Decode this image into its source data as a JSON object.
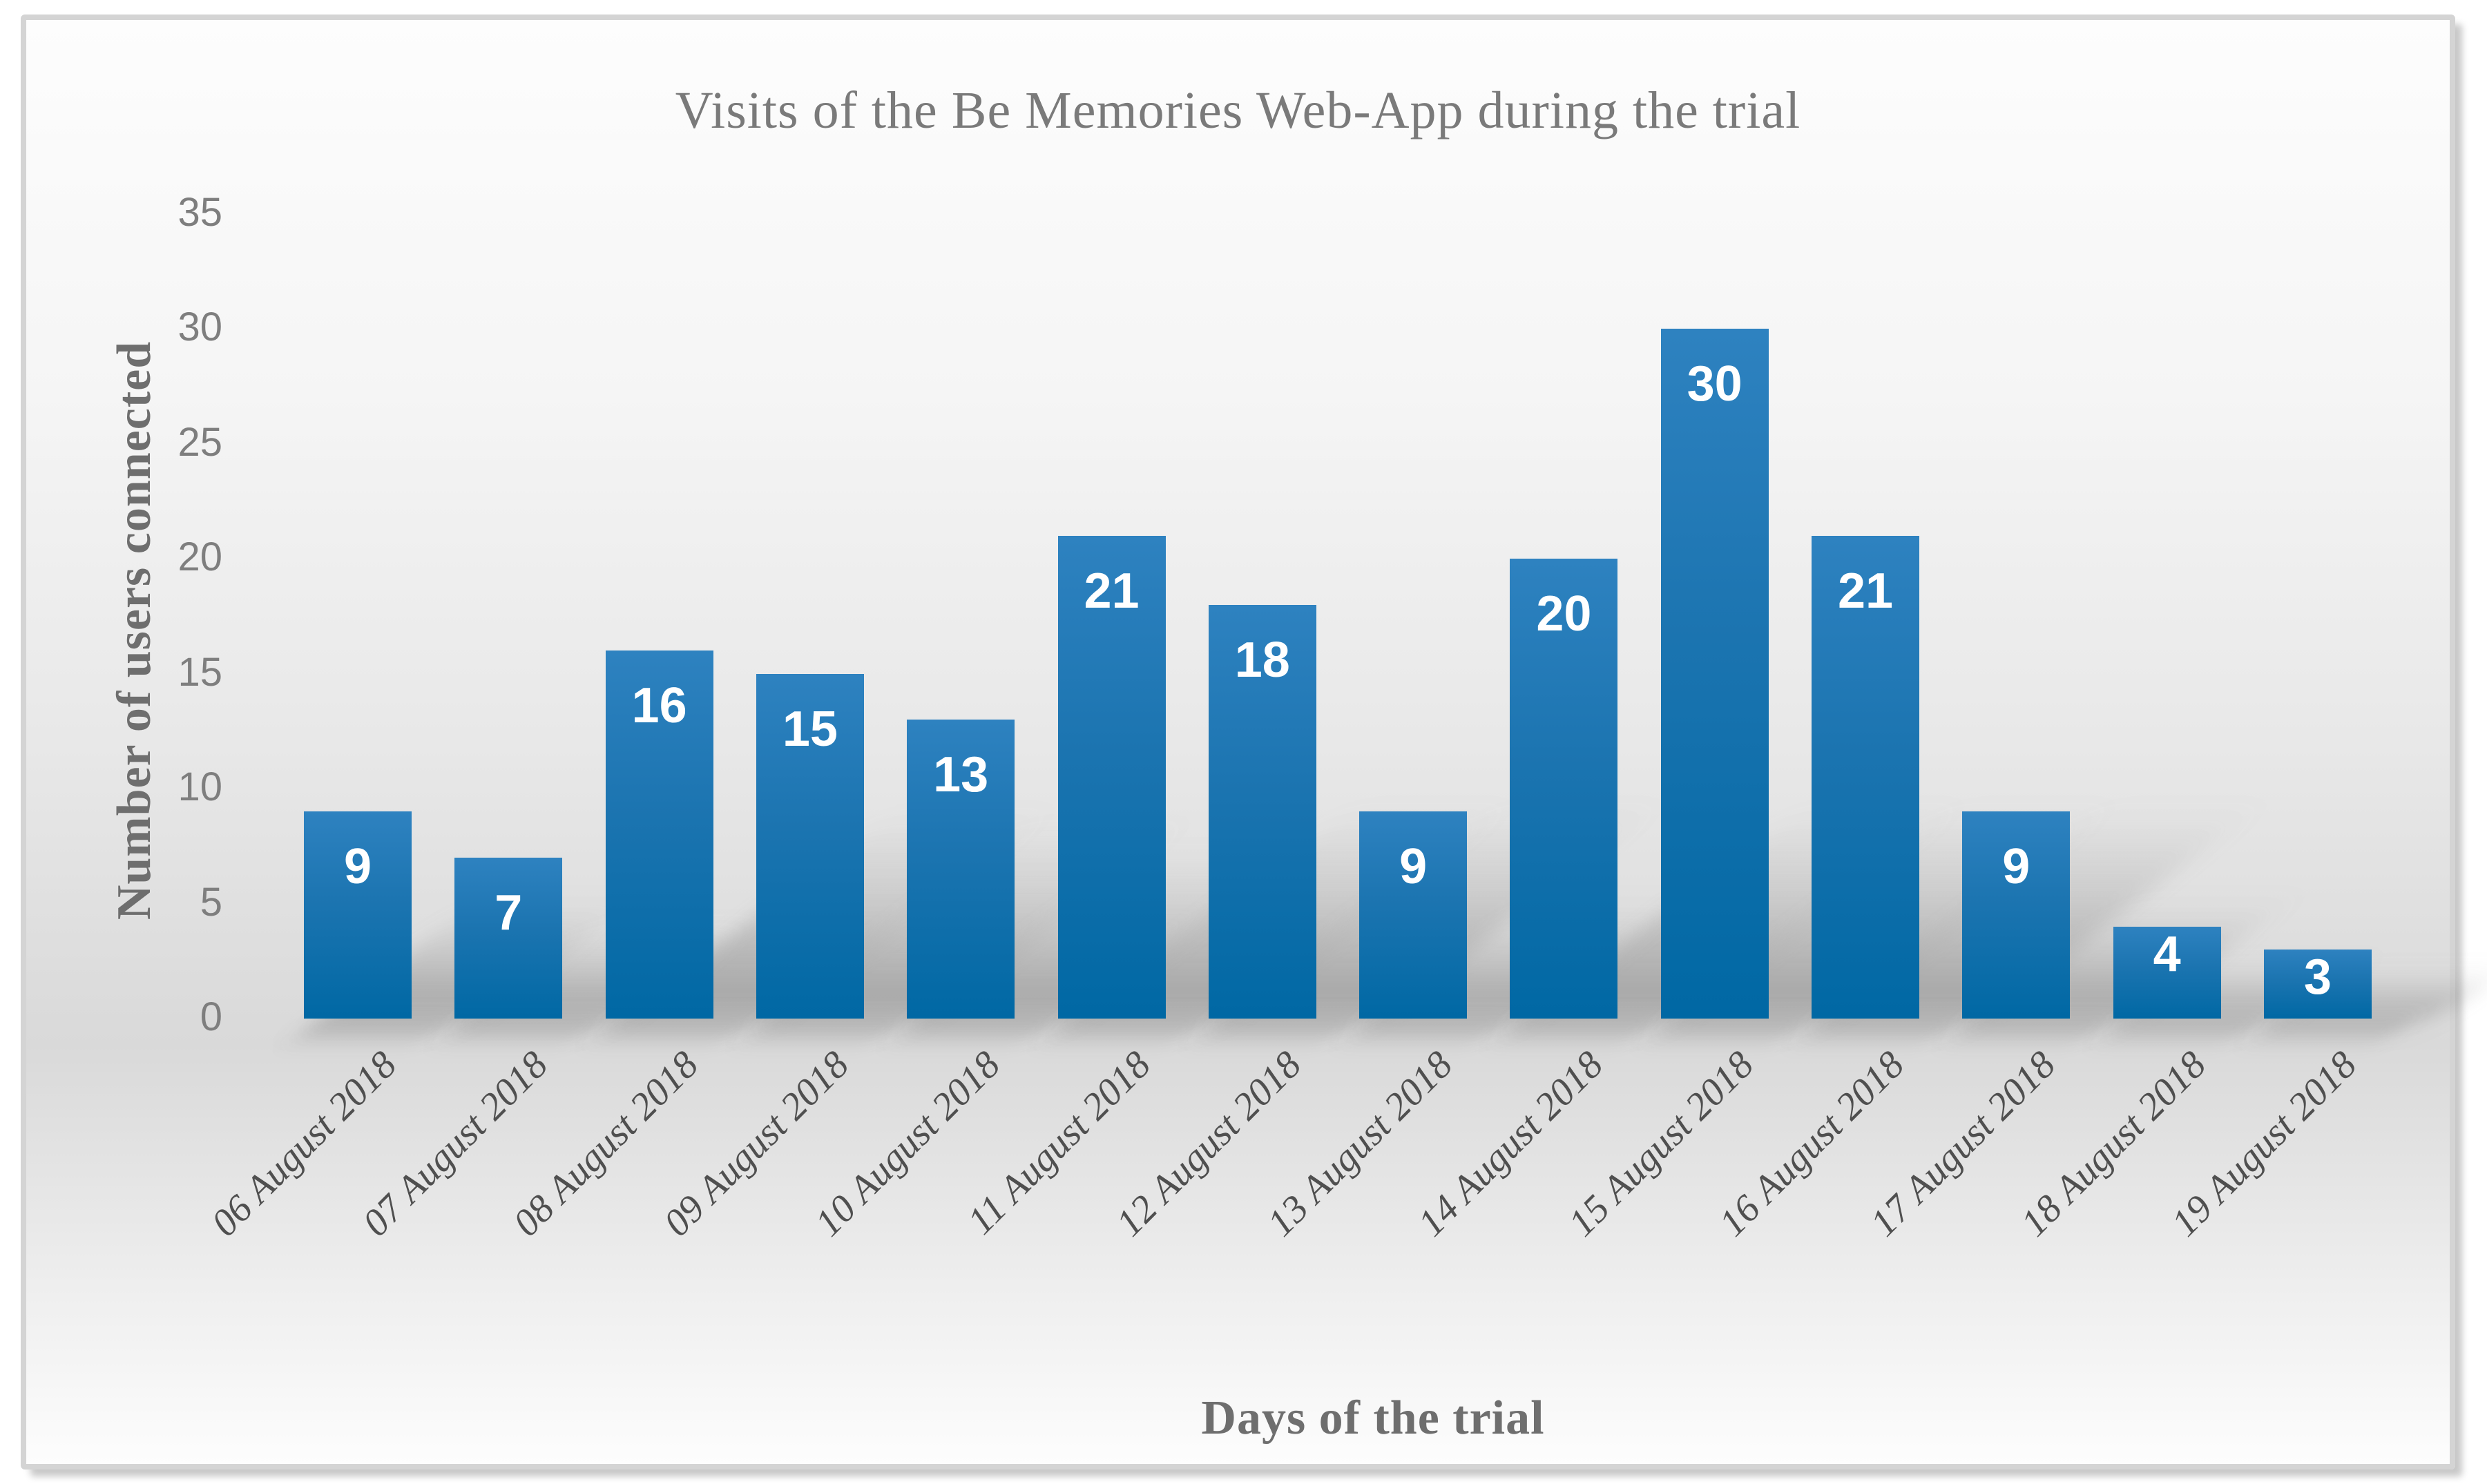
{
  "chart_data": {
    "type": "bar",
    "title": "Visits of the Be Memories Web-App during the trial",
    "xlabel": "Days of the trial",
    "ylabel": "Number of users connected",
    "categories": [
      "06 August 2018",
      "07 August 2018",
      "08 August 2018",
      "09 August 2018",
      "10 August 2018",
      "11 August 2018",
      "12 August 2018",
      "13 August 2018",
      "14 August 2018",
      "15 August 2018",
      "16 August 2018",
      "17 August 2018",
      "18 August 2018",
      "19 August 2018"
    ],
    "values": [
      9,
      7,
      16,
      15,
      13,
      21,
      18,
      9,
      20,
      30,
      21,
      9,
      4,
      3
    ],
    "data_labels": [
      "9",
      "7",
      "16",
      "15",
      "13",
      "21",
      "18",
      "9",
      "20",
      "30",
      "21",
      "9",
      "4",
      "3"
    ],
    "ylim": [
      0,
      35
    ],
    "yticks": [
      0,
      5,
      10,
      15,
      20,
      25,
      30,
      35
    ],
    "grid": false,
    "legend": false,
    "bar_labels_position": "inside-end",
    "style": {
      "bar_gradient_top": "#2E82C0",
      "bar_gradient_mid": "#1B74B0",
      "bar_gradient_bottom": "#0068A4",
      "bar_label_color": "#FFFFFF",
      "title_color": "#7A7A7A",
      "axis_title_color": "#6E6E6E",
      "ytick_color": "#7E7E7E",
      "xtick_color": "#4F4F4F",
      "frame_border_color": "#D4D4D4",
      "background_mid_gray": "#D9D9D9"
    }
  }
}
